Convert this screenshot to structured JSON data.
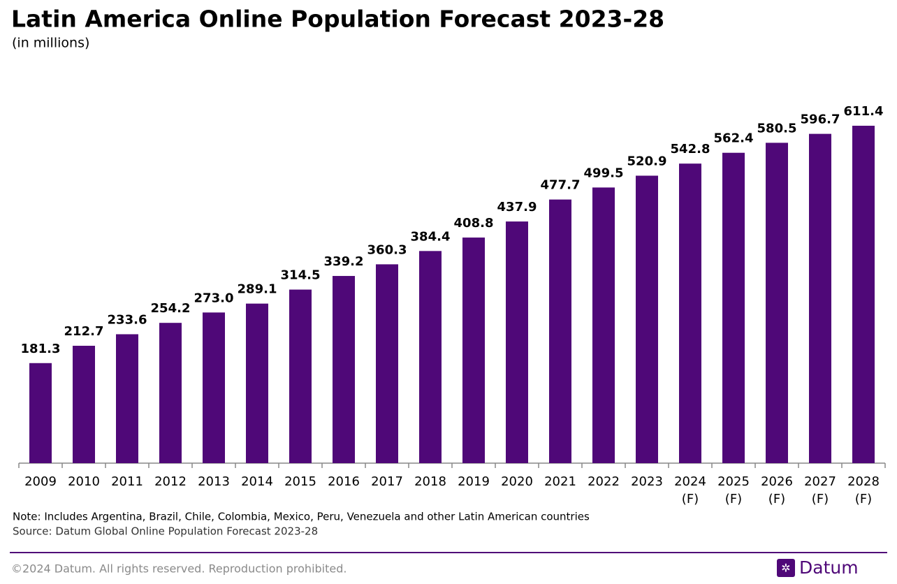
{
  "title": "Latin America Online Population Forecast 2023-28",
  "chart_data": {
    "type": "bar",
    "subtitle": "(in millions)",
    "categories": [
      "2009",
      "2010",
      "2011",
      "2012",
      "2013",
      "2014",
      "2015",
      "2016",
      "2017",
      "2018",
      "2019",
      "2020",
      "2021",
      "2022",
      "2023",
      "2024 (F)",
      "2025 (F)",
      "2026 (F)",
      "2027 (F)",
      "2028 (F)"
    ],
    "values": [
      181.3,
      212.7,
      233.6,
      254.2,
      273.0,
      289.1,
      314.5,
      339.2,
      360.3,
      384.4,
      408.8,
      437.9,
      477.7,
      499.5,
      520.9,
      542.8,
      562.4,
      580.5,
      596.7,
      611.4
    ],
    "value_labels": [
      "181.3",
      "212.7",
      "233.6",
      "254.2",
      "273.0",
      "289.1",
      "314.5",
      "339.2",
      "360.3",
      "384.4",
      "408.8",
      "437.9",
      "477.7",
      "499.5",
      "520.9",
      "542.8",
      "562.4",
      "580.5",
      "596.7",
      "611.4"
    ],
    "color": "#4f0878"
  },
  "note": "Note: Includes Argentina, Brazil, Chile, Colombia, Mexico, Peru, Venezuela and other Latin American countries",
  "source": "Source: Datum Global Online Population Forecast 2023-28",
  "footer": "©2024 Datum. All rights reserved. Reproduction prohibited.",
  "brand": "Datum"
}
